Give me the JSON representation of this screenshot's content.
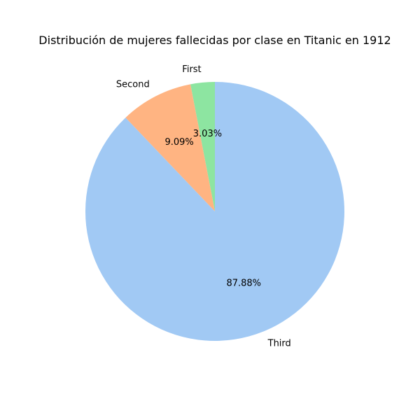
{
  "chart_data": {
    "type": "pie",
    "title": "Distribución de mujeres fallecidas por clase en Titanic en 1912",
    "categories": [
      "First",
      "Second",
      "Third"
    ],
    "values": [
      3.03,
      9.09,
      87.88
    ],
    "percent_labels": [
      "3.03%",
      "9.09%",
      "87.88%"
    ],
    "colors": [
      "#8de5a1",
      "#ffb482",
      "#a1c9f4"
    ],
    "start_angle_deg": 90,
    "direction": "counterclockwise",
    "legend": "none"
  }
}
